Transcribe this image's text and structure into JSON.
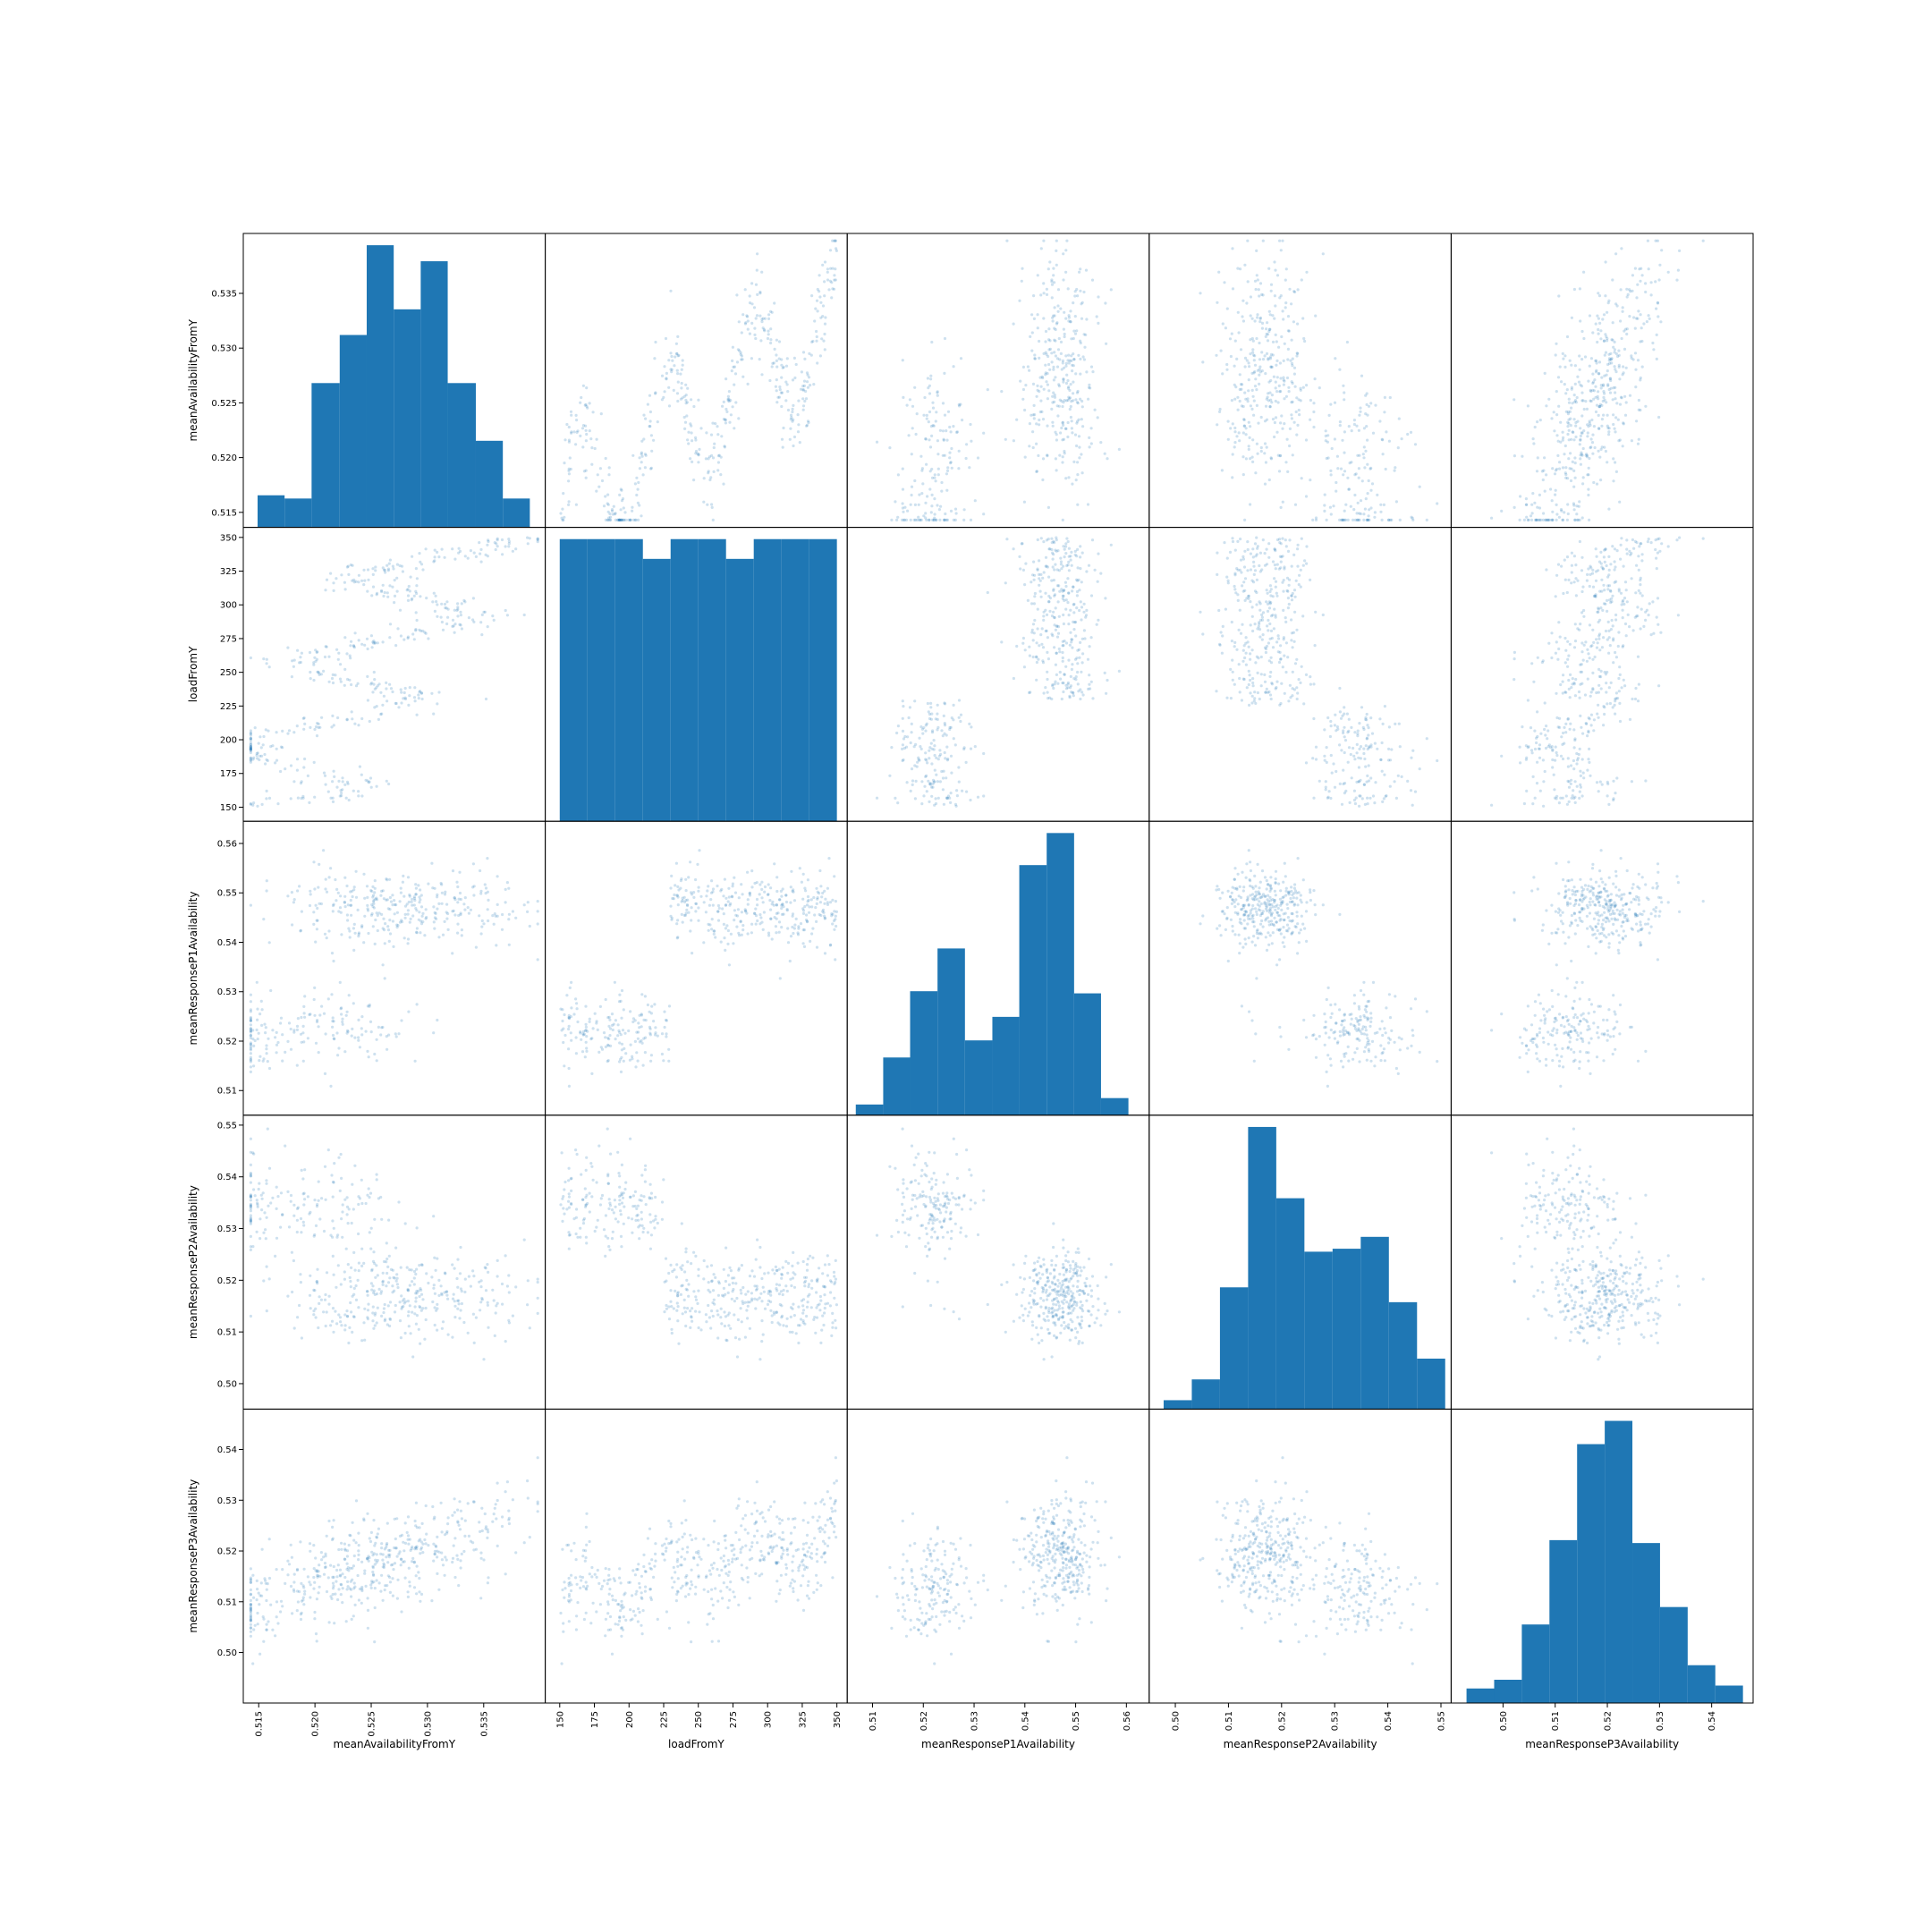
{
  "chart_data": {
    "type": "scatter_matrix",
    "color": "#1f77b4",
    "grid": false,
    "variables": [
      {
        "name": "meanAvailabilityFromY",
        "range": [
          0.5143,
          0.5398
        ],
        "ticks": [
          0.515,
          0.52,
          0.525,
          0.53,
          0.535
        ],
        "tick_labels": [
          "0.515",
          "0.520",
          "0.525",
          "0.530",
          "0.535"
        ]
      },
      {
        "name": "loadFromY",
        "range": [
          145,
          352
        ],
        "ticks": [
          150,
          175,
          200,
          225,
          250,
          275,
          300,
          325,
          350
        ],
        "tick_labels": [
          "150",
          "175",
          "200",
          "225",
          "250",
          "275",
          "300",
          "325",
          "350"
        ]
      },
      {
        "name": "meanResponseP1Availability",
        "range": [
          0.5065,
          0.563
        ],
        "ticks": [
          0.51,
          0.52,
          0.53,
          0.54,
          0.55,
          0.56
        ],
        "tick_labels": [
          "0.51",
          "0.52",
          "0.53",
          "0.54",
          "0.55",
          "0.56"
        ]
      },
      {
        "name": "meanResponseP2Availability",
        "range": [
          0.4965,
          0.5505
        ],
        "ticks": [
          0.5,
          0.51,
          0.52,
          0.53,
          0.54,
          0.55
        ],
        "tick_labels": [
          "0.50",
          "0.51",
          "0.52",
          "0.53",
          "0.54",
          "0.55"
        ]
      },
      {
        "name": "meanResponseP3Availability",
        "range": [
          0.4915,
          0.5465
        ],
        "ticks": [
          0.5,
          0.51,
          0.52,
          0.53,
          0.54
        ],
        "tick_labels": [
          "0.50",
          "0.51",
          "0.52",
          "0.53",
          "0.54"
        ]
      }
    ],
    "histograms": [
      {
        "variable": "meanAvailabilityFromY",
        "bin_edges": [
          0.5149,
          0.5173,
          0.5197,
          0.5222,
          0.5246,
          0.527,
          0.5294,
          0.5318,
          0.5343,
          0.5367,
          0.5391
        ],
        "counts": [
          10,
          9,
          45,
          60,
          88,
          68,
          83,
          45,
          27,
          9
        ]
      },
      {
        "variable": "loadFromY",
        "bin_edges": [
          150,
          170,
          190,
          210,
          230,
          250,
          270,
          290,
          310,
          330,
          350
        ],
        "counts": [
          100,
          100,
          100,
          93,
          100,
          100,
          93,
          100,
          100,
          100
        ]
      },
      {
        "variable": "meanResponseP1Availability",
        "bin_edges": [
          0.5067,
          0.5121,
          0.5174,
          0.5228,
          0.5282,
          0.5336,
          0.5389,
          0.5443,
          0.5497,
          0.555,
          0.5604
        ],
        "counts": [
          5,
          27,
          58,
          78,
          35,
          46,
          117,
          132,
          57,
          8
        ]
      },
      {
        "variable": "meanResponseP2Availability",
        "bin_edges": [
          0.4978,
          0.5031,
          0.5084,
          0.5137,
          0.519,
          0.5243,
          0.5296,
          0.5349,
          0.5402,
          0.5455,
          0.5508
        ],
        "counts": [
          3,
          10,
          41,
          95,
          71,
          53,
          54,
          58,
          36,
          17
        ]
      },
      {
        "variable": "meanResponseP3Availability",
        "bin_edges": [
          0.493,
          0.4983,
          0.5036,
          0.5089,
          0.5142,
          0.5195,
          0.5248,
          0.5301,
          0.5354,
          0.5407,
          0.546
        ],
        "counts": [
          5,
          8,
          27,
          56,
          89,
          97,
          55,
          33,
          13,
          6
        ]
      }
    ]
  }
}
